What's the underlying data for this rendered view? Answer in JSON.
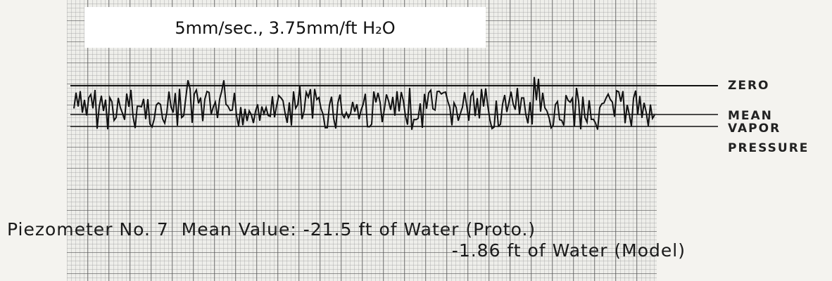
{
  "scale_label": "5mm/sec., 3.75mm/ft H₂O",
  "reference_lines": [
    {
      "label": "ZERO"
    },
    {
      "label": "MEAN"
    },
    {
      "label": "VAPOR PRESSURE"
    }
  ],
  "caption": {
    "line1": "Piezometer No. 7  Mean Value: -21.5 ft of Water (Proto.)",
    "line2": "-1.86 ft of Water (Model)"
  }
}
